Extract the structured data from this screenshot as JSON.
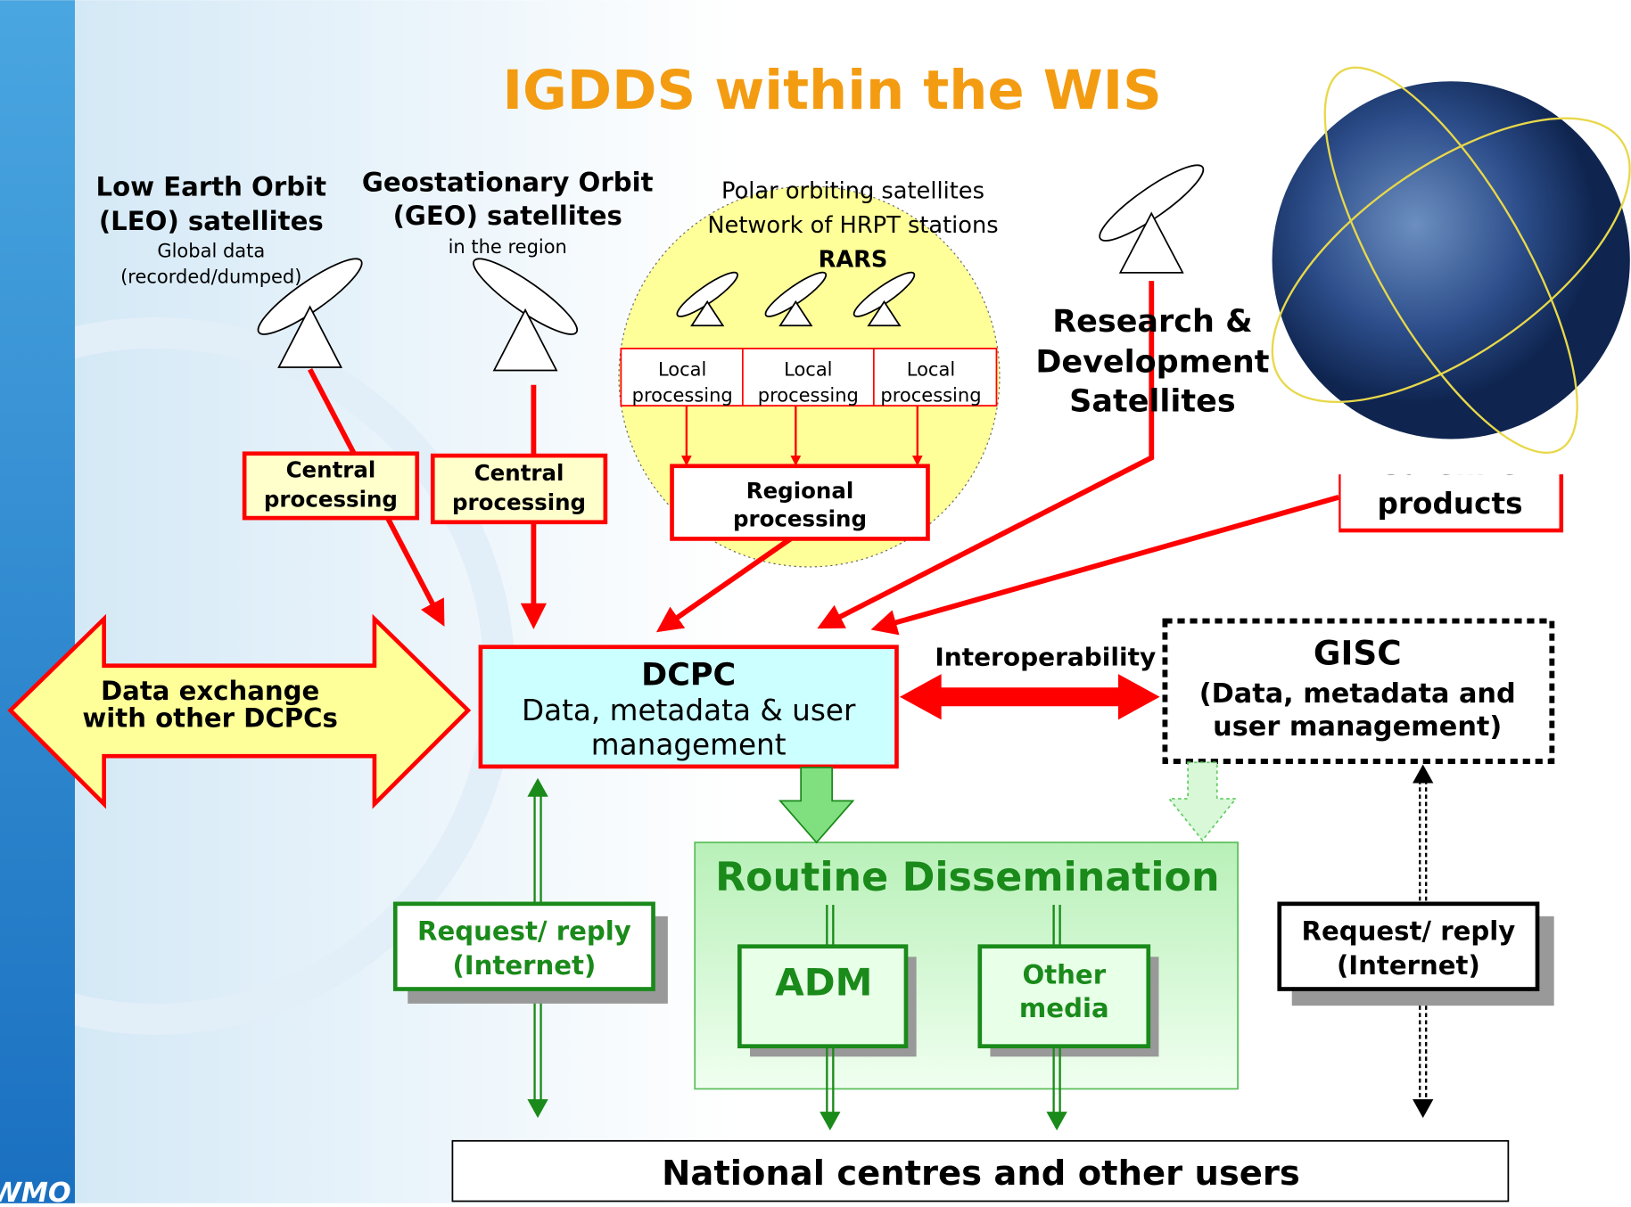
{
  "title": "IGDDS within the WIS",
  "leo": {
    "lines": [
      "Low Earth Orbit",
      "(LEO) satellites"
    ],
    "notes": [
      "Global data",
      "(recorded/dumped)"
    ]
  },
  "geo": {
    "lines": [
      "Geostationary Orbit",
      "(GEO) satellites"
    ],
    "notes": [
      "in the region"
    ]
  },
  "rars": {
    "lines": [
      "Polar orbiting satellites",
      "Network of HRPT stations"
    ],
    "name": "RARS",
    "local": [
      [
        "Local",
        "processing"
      ],
      [
        "Local",
        "processing"
      ],
      [
        "Local",
        "processing"
      ]
    ]
  },
  "central": [
    [
      "Central",
      "processing"
    ],
    [
      "Central",
      "processing"
    ]
  ],
  "regional": [
    "Regional",
    "processing"
  ],
  "rnd": [
    "Research &",
    "Development",
    "Satellites"
  ],
  "products": [
    "Satellite",
    "products"
  ],
  "exchange": [
    "Data exchange",
    "with other DCPCs"
  ],
  "dcpc": {
    "name": "DCPC",
    "lines": [
      "Data, metadata & user",
      "management"
    ]
  },
  "interoperability": "Interoperability",
  "gisc": {
    "name": "GISC",
    "lines": [
      "(Data, metadata and",
      "user management)"
    ]
  },
  "routine": {
    "title": "Routine Dissemination",
    "adm": "ADM",
    "other": [
      "Other",
      "media"
    ]
  },
  "request": [
    [
      "Request/ reply",
      "(Internet)"
    ],
    [
      "Request/ reply",
      "(Internet)"
    ]
  ],
  "national": "National centres and other users",
  "logo": "WMO"
}
